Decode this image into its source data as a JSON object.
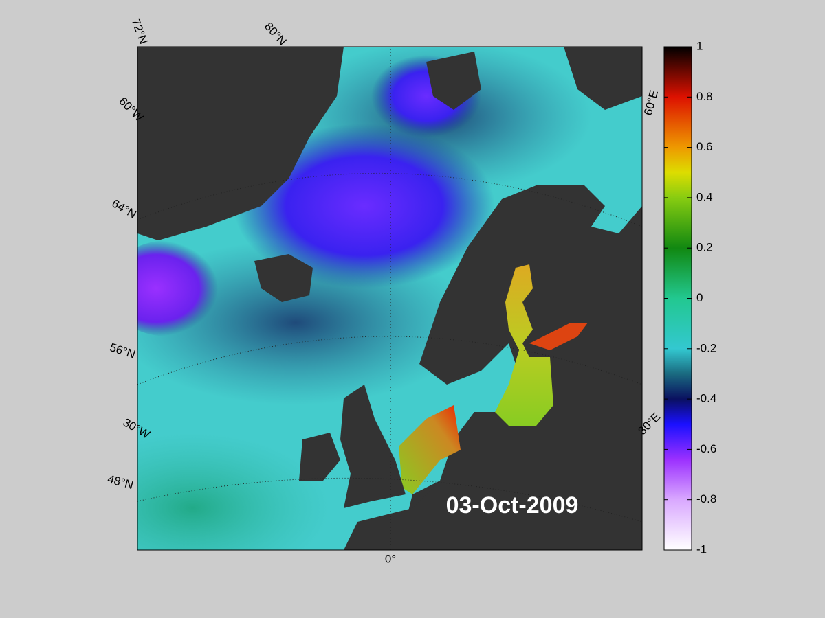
{
  "map": {
    "labels": [
      "72°N",
      "80°N",
      "60°W",
      "64°N",
      "56°N",
      "30°W",
      "48°N",
      "0°",
      "30°E",
      "60°E"
    ],
    "date": "03-Oct-2009"
  },
  "colorbar": {
    "lim": [
      -1,
      1
    ],
    "ticks": [
      1,
      0.8,
      0.6,
      0.4,
      0.2,
      0,
      -0.2,
      -0.4,
      -0.6,
      -0.8,
      -1
    ]
  }
}
